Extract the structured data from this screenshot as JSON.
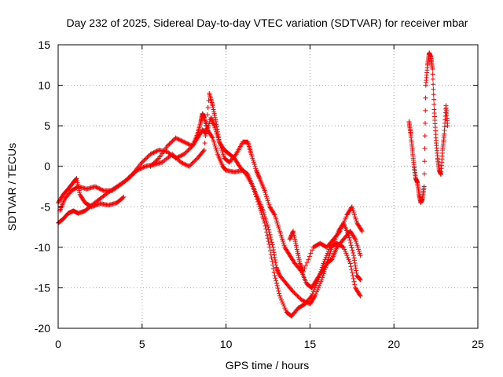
{
  "chart_data": {
    "type": "scatter",
    "title": "Day 232 of 2025, Sidereal Day-to-day VTEC variation (SDTVAR) for receiver mbar",
    "xlabel": "GPS time / hours",
    "ylabel": "SDTVAR / TECUs",
    "xlim": [
      0,
      25
    ],
    "ylim": [
      -20,
      15
    ],
    "xticks": [
      0,
      5,
      10,
      15,
      20,
      25
    ],
    "yticks": [
      -20,
      -15,
      -10,
      -5,
      0,
      5,
      10,
      15
    ],
    "xtick_labels": [
      "0",
      "5",
      "10",
      "15",
      "20",
      "25"
    ],
    "ytick_labels": [
      "-20",
      "-15",
      "-10",
      "-5",
      "0",
      "5",
      "10",
      "15"
    ],
    "grid": true,
    "marker": "+",
    "color": "#ff0000",
    "series": [
      {
        "name": "track-1",
        "points": [
          [
            0.0,
            -4.5
          ],
          [
            0.3,
            -3.5
          ],
          [
            0.6,
            -2.8
          ],
          [
            0.9,
            -2.0
          ],
          [
            1.1,
            -1.5
          ],
          [
            1.3,
            -3.5
          ],
          [
            1.6,
            -4.5
          ],
          [
            2.0,
            -5.0
          ],
          [
            2.5,
            -4.6
          ],
          [
            3.0,
            -4.8
          ],
          [
            3.5,
            -4.5
          ],
          [
            3.9,
            -3.8
          ]
        ]
      },
      {
        "name": "track-2",
        "points": [
          [
            0.0,
            -7.0
          ],
          [
            0.3,
            -6.5
          ],
          [
            0.6,
            -5.8
          ],
          [
            0.9,
            -5.5
          ],
          [
            1.2,
            -5.8
          ],
          [
            1.6,
            -5.5
          ],
          [
            2.0,
            -4.8
          ],
          [
            2.5,
            -4.0
          ],
          [
            3.0,
            -3.2
          ],
          [
            3.5,
            -2.5
          ],
          [
            4.0,
            -1.8
          ],
          [
            4.5,
            -0.8
          ],
          [
            5.0,
            0.5
          ],
          [
            5.5,
            1.5
          ],
          [
            6.0,
            2.0
          ],
          [
            6.5,
            1.8
          ],
          [
            7.0,
            1.0
          ],
          [
            7.5,
            1.5
          ],
          [
            8.0,
            2.5
          ],
          [
            8.3,
            4.0
          ],
          [
            8.5,
            5.5
          ],
          [
            8.6,
            6.5
          ],
          [
            8.7,
            6.0
          ],
          [
            8.9,
            4.5
          ],
          [
            9.2,
            3.5
          ],
          [
            9.5,
            1.5
          ],
          [
            9.8,
            0.0
          ],
          [
            10.0,
            -0.5
          ],
          [
            10.5,
            -0.7
          ],
          [
            11.0,
            -0.5
          ],
          [
            11.3,
            -1.0
          ],
          [
            11.6,
            -2.5
          ],
          [
            11.9,
            -4.0
          ],
          [
            12.2,
            -5.5
          ],
          [
            12.5,
            -7.5
          ],
          [
            12.8,
            -10.0
          ],
          [
            13.0,
            -12.5
          ],
          [
            13.2,
            -13.5
          ],
          [
            13.6,
            -14.5
          ],
          [
            14.0,
            -15.5
          ],
          [
            14.5,
            -16.5
          ],
          [
            15.0,
            -17.0
          ],
          [
            15.3,
            -16.0
          ],
          [
            15.7,
            -14.0
          ],
          [
            16.0,
            -12.0
          ],
          [
            16.3,
            -10.0
          ],
          [
            16.7,
            -8.0
          ],
          [
            17.0,
            -7.0
          ],
          [
            17.3,
            -8.5
          ],
          [
            17.6,
            -11.0
          ],
          [
            17.8,
            -13.5
          ],
          [
            18.0,
            -14.0
          ]
        ]
      },
      {
        "name": "track-3",
        "points": [
          [
            0.1,
            -5.5
          ],
          [
            0.4,
            -4.0
          ],
          [
            0.8,
            -3.0
          ],
          [
            1.2,
            -2.5
          ],
          [
            1.7,
            -2.8
          ],
          [
            2.2,
            -2.5
          ],
          [
            2.7,
            -3.0
          ],
          [
            3.2,
            -3.0
          ],
          [
            3.7,
            -2.3
          ],
          [
            4.2,
            -1.5
          ],
          [
            4.7,
            -0.5
          ],
          [
            5.2,
            0.0
          ],
          [
            5.7,
            0.2
          ],
          [
            6.2,
            0.5
          ],
          [
            6.8,
            1.5
          ],
          [
            7.3,
            0.5
          ],
          [
            7.8,
            0.0
          ],
          [
            8.3,
            1.0
          ],
          [
            8.7,
            2.0
          ],
          [
            9.0,
            9.0
          ],
          [
            9.2,
            7.5
          ],
          [
            9.4,
            5.5
          ],
          [
            9.6,
            3.0
          ],
          [
            9.9,
            2.0
          ],
          [
            10.2,
            1.5
          ],
          [
            10.5,
            1.0
          ],
          [
            10.8,
            0.0
          ],
          [
            11.2,
            -1.0
          ],
          [
            11.6,
            -2.5
          ],
          [
            12.0,
            -5.0
          ],
          [
            12.3,
            -7.0
          ],
          [
            12.6,
            -10.0
          ],
          [
            12.9,
            -13.5
          ],
          [
            13.2,
            -16.0
          ],
          [
            13.6,
            -18.0
          ],
          [
            13.9,
            -18.5
          ],
          [
            14.3,
            -17.5
          ],
          [
            14.7,
            -17.0
          ],
          [
            15.1,
            -16.0
          ],
          [
            15.5,
            -14.0
          ],
          [
            15.8,
            -12.0
          ],
          [
            16.2,
            -10.0
          ],
          [
            16.6,
            -9.5
          ],
          [
            17.0,
            -10.0
          ],
          [
            17.4,
            -12.0
          ],
          [
            17.7,
            -15.0
          ],
          [
            18.0,
            -16.0
          ]
        ]
      },
      {
        "name": "track-4",
        "points": [
          [
            5.5,
            0.0
          ],
          [
            6.0,
            1.0
          ],
          [
            6.5,
            2.5
          ],
          [
            7.0,
            3.5
          ],
          [
            7.5,
            3.0
          ],
          [
            8.0,
            2.5
          ],
          [
            8.3,
            3.5
          ],
          [
            8.6,
            4.5
          ],
          [
            8.8,
            4.0
          ],
          [
            9.1,
            6.0
          ],
          [
            9.3,
            5.0
          ],
          [
            9.6,
            3.0
          ],
          [
            9.9,
            1.0
          ],
          [
            10.2,
            0.5
          ],
          [
            10.6,
            1.5
          ],
          [
            11.0,
            3.0
          ],
          [
            11.3,
            3.0
          ],
          [
            11.5,
            1.5
          ],
          [
            11.8,
            -0.5
          ],
          [
            12.0,
            -1.5
          ],
          [
            12.3,
            -3.0
          ],
          [
            12.6,
            -5.0
          ],
          [
            12.9,
            -6.0
          ],
          [
            13.2,
            -8.0
          ],
          [
            13.5,
            -10.0
          ],
          [
            13.8,
            -11.0
          ],
          [
            14.1,
            -12.0
          ],
          [
            14.5,
            -13.0
          ],
          [
            14.8,
            -14.5
          ],
          [
            15.1,
            -15.0
          ],
          [
            15.4,
            -14.0
          ],
          [
            15.7,
            -13.0
          ],
          [
            16.0,
            -12.0
          ],
          [
            16.3,
            -11.5
          ],
          [
            16.6,
            -10.0
          ],
          [
            17.0,
            -9.0
          ],
          [
            17.4,
            -8.0
          ],
          [
            17.7,
            -9.0
          ],
          [
            18.0,
            -11.0
          ]
        ]
      },
      {
        "name": "track-5",
        "points": [
          [
            13.8,
            -9.0
          ],
          [
            14.0,
            -8.0
          ],
          [
            14.2,
            -10.0
          ],
          [
            14.4,
            -12.0
          ],
          [
            14.6,
            -13.0
          ],
          [
            15.2,
            -10.0
          ],
          [
            15.6,
            -9.5
          ],
          [
            16.0,
            -10.0
          ],
          [
            16.4,
            -9.0
          ],
          [
            16.8,
            -8.0
          ],
          [
            17.2,
            -6.0
          ],
          [
            17.5,
            -5.0
          ],
          [
            17.8,
            -7.0
          ],
          [
            18.1,
            -8.0
          ]
        ]
      },
      {
        "name": "track-6",
        "points": [
          [
            20.9,
            5.5
          ],
          [
            21.0,
            4.0
          ],
          [
            21.1,
            2.0
          ],
          [
            21.2,
            0.0
          ],
          [
            21.3,
            -1.5
          ],
          [
            21.4,
            -2.0
          ],
          [
            21.5,
            -3.5
          ],
          [
            21.6,
            -4.5
          ],
          [
            21.7,
            -4.0
          ],
          [
            21.8,
            -2.5
          ],
          [
            21.9,
            10.0
          ],
          [
            22.0,
            12.5
          ],
          [
            22.1,
            14.0
          ],
          [
            22.2,
            13.5
          ],
          [
            22.3,
            12.0
          ],
          [
            22.4,
            7.0
          ],
          [
            22.5,
            3.5
          ],
          [
            22.6,
            1.0
          ],
          [
            22.7,
            -0.5
          ],
          [
            22.8,
            -1.0
          ],
          [
            22.9,
            2.0
          ],
          [
            23.0,
            4.0
          ],
          [
            23.1,
            7.5
          ],
          [
            23.2,
            5.0
          ]
        ]
      }
    ]
  }
}
